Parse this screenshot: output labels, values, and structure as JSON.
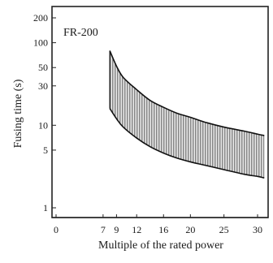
{
  "chart_data": {
    "type": "area",
    "annotation": "FR-200",
    "xlabel": "Multiple of the rated power",
    "ylabel": "Fusing time (s)",
    "x_ticks": [
      {
        "value": 0,
        "label": "0"
      },
      {
        "value": 7,
        "label": "7"
      },
      {
        "value": 9,
        "label": "9"
      },
      {
        "value": 12,
        "label": "12"
      },
      {
        "value": 16,
        "label": "16"
      },
      {
        "value": 20,
        "label": "20"
      },
      {
        "value": 25,
        "label": "25"
      },
      {
        "value": 30,
        "label": "30"
      }
    ],
    "y_ticks": [
      {
        "value": 1,
        "label": "1"
      },
      {
        "value": 5,
        "label": "5"
      },
      {
        "value": 10,
        "label": "10"
      },
      {
        "value": 30,
        "label": "30"
      },
      {
        "value": 50,
        "label": "50"
      },
      {
        "value": 100,
        "label": "100"
      },
      {
        "value": 200,
        "label": "200"
      }
    ],
    "y_scale": "log",
    "grid": false,
    "series": [
      {
        "role": "upper-bound",
        "x": [
          8,
          9,
          10,
          12,
          14,
          16,
          18,
          20,
          22,
          25,
          28,
          30,
          31
        ],
        "y": [
          80,
          52,
          38,
          27,
          20,
          16.5,
          14,
          12.5,
          11,
          9.5,
          8.5,
          7.8,
          7.5
        ]
      },
      {
        "role": "lower-bound",
        "x": [
          8,
          9,
          10,
          12,
          14,
          16,
          18,
          20,
          22,
          25,
          28,
          30,
          31
        ],
        "y": [
          16,
          12,
          9.5,
          7,
          5.5,
          4.6,
          4,
          3.6,
          3.3,
          2.9,
          2.55,
          2.4,
          2.3
        ]
      }
    ],
    "band_fill": "#777777",
    "band_background": "#e6e6e6",
    "line_color": "#111111"
  }
}
